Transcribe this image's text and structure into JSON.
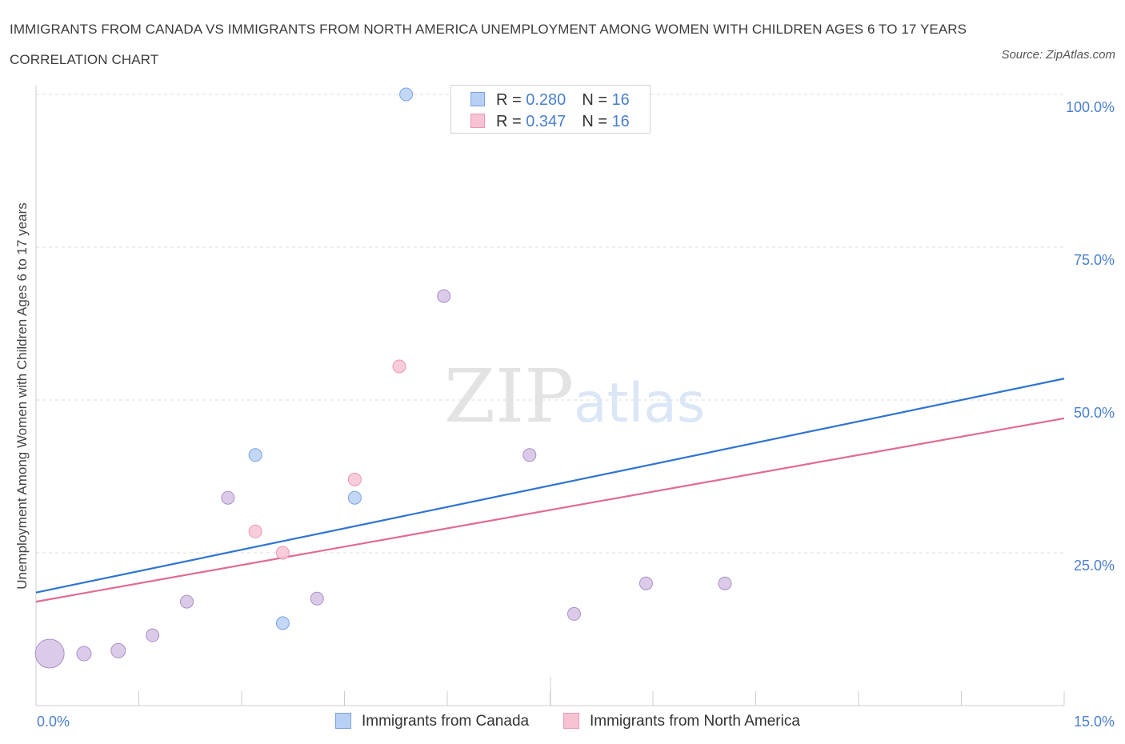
{
  "title": "IMMIGRANTS FROM CANADA VS IMMIGRANTS FROM NORTH AMERICA UNEMPLOYMENT AMONG WOMEN WITH CHILDREN AGES 6 TO 17 YEARS CORRELATION CHART",
  "source": "Source: ZipAtlas.com",
  "watermark": {
    "zip": "ZIP",
    "atlas": "atlas"
  },
  "legend": {
    "r_label": "R = ",
    "n_label": "N = ",
    "canada": {
      "r": "0.280",
      "n": "16"
    },
    "north_america": {
      "r": "0.347",
      "n": "16"
    }
  },
  "chart_data": {
    "type": "scatter",
    "title": "IMMIGRANTS FROM CANADA VS IMMIGRANTS FROM NORTH AMERICA UNEMPLOYMENT AMONG WOMEN WITH CHILDREN AGES 6 TO 17 YEARS CORRELATION CHART",
    "xlabel": "",
    "ylabel": "Unemployment Among Women with Children Ages 6 to 17 years",
    "xlim": [
      0,
      15
    ],
    "ylim": [
      0,
      100
    ],
    "x_tick_labels": [
      "0.0%",
      "15.0%"
    ],
    "y_ticks": [
      {
        "value": 100,
        "label": "100.0%"
      },
      {
        "value": 75,
        "label": "75.0%"
      },
      {
        "value": 50,
        "label": "50.0%"
      },
      {
        "value": 25,
        "label": "25.0%"
      }
    ],
    "grid": "horizontal-dashed",
    "legend_position": "top-center and bottom-center",
    "colors": {
      "canada_fill": "#b9d0f5",
      "canada_stroke": "#7aa3e3",
      "canada_line": "#2f74d0",
      "na_fill": "#f7c3d3",
      "na_stroke": "#ec97b3",
      "na_line": "#e06b96",
      "overlap_fill": "#d5c2e4",
      "overlap_stroke": "#a98fc6",
      "value_text": "#4a7fd1"
    },
    "series": [
      {
        "name": "Immigrants from Canada",
        "r": 0.28,
        "n": 16,
        "points": [
          {
            "x": 5.4,
            "y": 100,
            "size": 8
          },
          {
            "x": 3.2,
            "y": 41,
            "size": 8
          },
          {
            "x": 4.65,
            "y": 34,
            "size": 8
          },
          {
            "x": 3.6,
            "y": 13.5,
            "size": 8
          }
        ],
        "trend": {
          "x0": 0,
          "y0": 18.5,
          "x1": 15,
          "y1": 53.5
        }
      },
      {
        "name": "Immigrants from North America",
        "r": 0.347,
        "n": 16,
        "points": [
          {
            "x": 5.3,
            "y": 55.5,
            "size": 8
          },
          {
            "x": 4.65,
            "y": 37,
            "size": 8
          },
          {
            "x": 3.2,
            "y": 28.5,
            "size": 8
          },
          {
            "x": 3.6,
            "y": 25,
            "size": 8
          }
        ],
        "trend": {
          "x0": 0,
          "y0": 17,
          "x1": 15,
          "y1": 47
        }
      }
    ],
    "overlap_points": [
      {
        "x": 0.2,
        "y": 8.5,
        "size": 18
      },
      {
        "x": 0.7,
        "y": 8.5,
        "size": 9
      },
      {
        "x": 1.2,
        "y": 9,
        "size": 9
      },
      {
        "x": 1.7,
        "y": 11.5,
        "size": 8
      },
      {
        "x": 2.2,
        "y": 17,
        "size": 8
      },
      {
        "x": 2.8,
        "y": 34,
        "size": 8
      },
      {
        "x": 4.1,
        "y": 17.5,
        "size": 8
      },
      {
        "x": 5.95,
        "y": 67,
        "size": 8
      },
      {
        "x": 7.2,
        "y": 41,
        "size": 8
      },
      {
        "x": 7.85,
        "y": 15,
        "size": 8
      },
      {
        "x": 8.9,
        "y": 20,
        "size": 8
      },
      {
        "x": 10.05,
        "y": 20,
        "size": 8
      }
    ]
  }
}
